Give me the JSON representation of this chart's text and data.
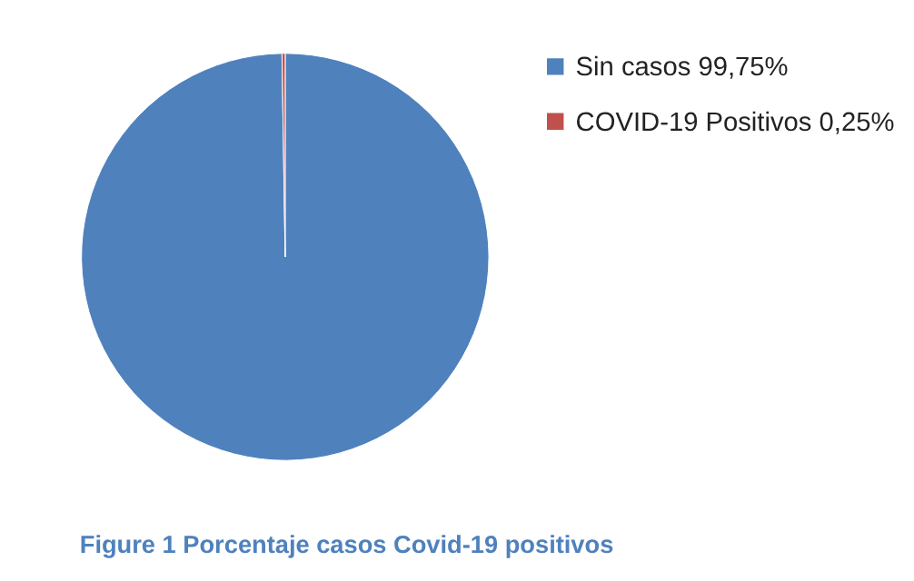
{
  "chart_data": {
    "type": "pie",
    "title": "Figure 1 Porcentaje casos Covid-19 positivos",
    "categories": [
      "Sin casos 99,75%",
      "COVID-19 Positivos 0,25%"
    ],
    "values": [
      99.75,
      0.25
    ],
    "colors": [
      "#4f81bd",
      "#c0504d"
    ],
    "legend": "right"
  }
}
